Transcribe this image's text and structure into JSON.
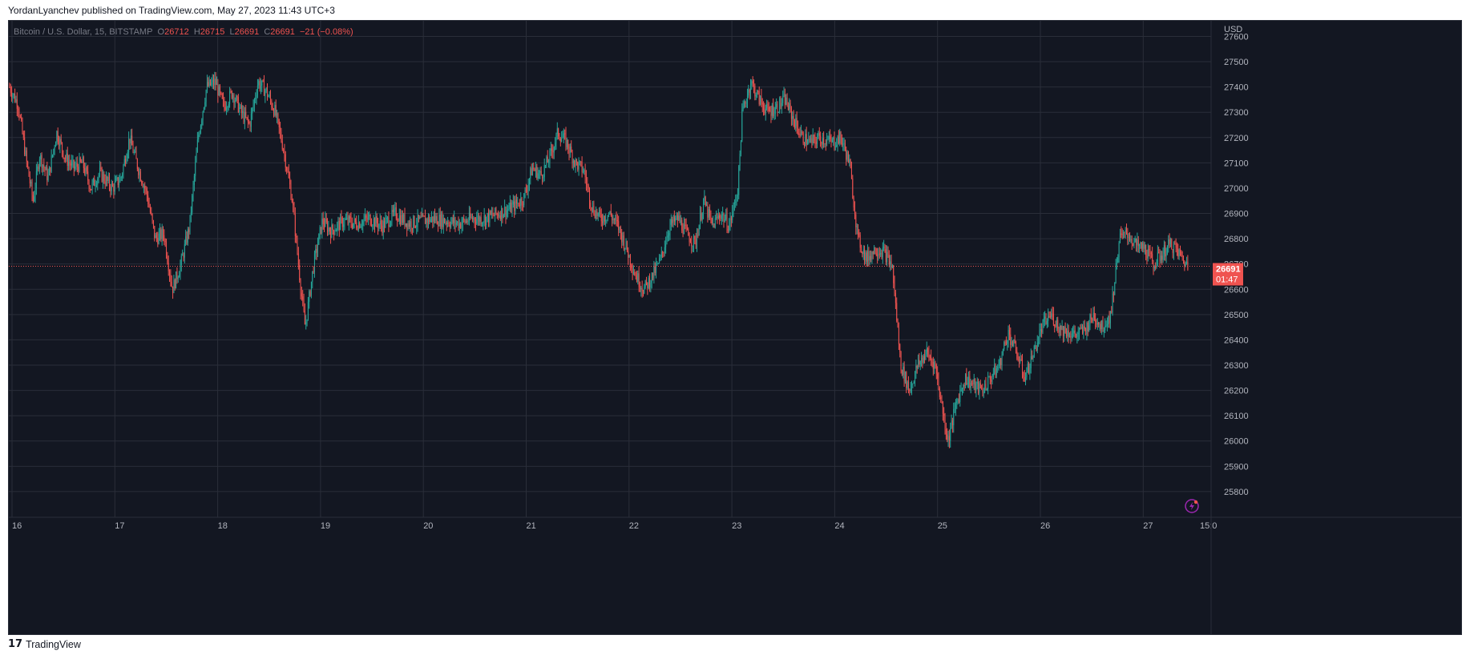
{
  "header": {
    "publisher": "YordanLyanchev",
    "published_text": "published on TradingView.com, May 27, 2023 11:43 UTC+3"
  },
  "legend": {
    "symbol": "Bitcoin / U.S. Dollar, 15, BITSTAMP",
    "open_label": "O",
    "open": "26712",
    "high_label": "H",
    "high": "26715",
    "low_label": "L",
    "low": "26691",
    "close_label": "C",
    "close": "26691",
    "change": "−21 (−0.08%)"
  },
  "price_tag": {
    "price": "26691",
    "countdown": "01:47"
  },
  "footer": {
    "brand": "TradingView",
    "logo": "tradingview-logo-icon"
  },
  "colors": {
    "background": "#131722",
    "grid": "#2a2e39",
    "up": "#26a69a",
    "down": "#ef5350",
    "axis_text": "#b2b5be",
    "last_price": "#ef5350"
  },
  "chart_data": {
    "type": "candlestick",
    "y_axis_unit": "USD",
    "ylim": [
      25730,
      27630
    ],
    "y_ticks": [
      25800,
      25900,
      26000,
      26100,
      26200,
      26300,
      26400,
      26500,
      26600,
      26700,
      26800,
      26900,
      27000,
      27100,
      27200,
      27300,
      27400,
      27500,
      27600
    ],
    "x_ticks": [
      "16",
      "17",
      "18",
      "19",
      "20",
      "21",
      "22",
      "23",
      "24",
      "25",
      "26",
      "27",
      "15:0"
    ],
    "last_price": 26691,
    "grid": true,
    "close_path": [
      [
        "2023-05-16 00:00",
        27400
      ],
      [
        "2023-05-16 02:00",
        27330
      ],
      [
        "2023-05-16 04:00",
        27100
      ],
      [
        "2023-05-16 05:30",
        26950
      ],
      [
        "2023-05-16 07:00",
        27130
      ],
      [
        "2023-05-16 09:00",
        27040
      ],
      [
        "2023-05-16 11:00",
        27220
      ],
      [
        "2023-05-16 13:00",
        27120
      ],
      [
        "2023-05-16 15:00",
        27080
      ],
      [
        "2023-05-16 17:00",
        27100
      ],
      [
        "2023-05-16 19:00",
        27000
      ],
      [
        "2023-05-16 21:00",
        27060
      ],
      [
        "2023-05-17 00:00",
        27000
      ],
      [
        "2023-05-17 02:00",
        27040
      ],
      [
        "2023-05-17 04:00",
        27200
      ],
      [
        "2023-05-17 06:00",
        27080
      ],
      [
        "2023-05-17 08:00",
        26980
      ],
      [
        "2023-05-17 10:00",
        26800
      ],
      [
        "2023-05-17 12:00",
        26820
      ],
      [
        "2023-05-17 14:00",
        26600
      ],
      [
        "2023-05-17 16:00",
        26700
      ],
      [
        "2023-05-17 18:00",
        26850
      ],
      [
        "2023-05-17 20:00",
        27200
      ],
      [
        "2023-05-17 22:00",
        27400
      ],
      [
        "2023-05-18 00:00",
        27420
      ],
      [
        "2023-05-18 02:00",
        27320
      ],
      [
        "2023-05-18 04:00",
        27380
      ],
      [
        "2023-05-18 06:00",
        27300
      ],
      [
        "2023-05-18 08:00",
        27250
      ],
      [
        "2023-05-18 10:00",
        27420
      ],
      [
        "2023-05-18 12:00",
        27380
      ],
      [
        "2023-05-18 14:00",
        27300
      ],
      [
        "2023-05-18 16:00",
        27150
      ],
      [
        "2023-05-18 18:00",
        26950
      ],
      [
        "2023-05-18 20:00",
        26600
      ],
      [
        "2023-05-18 21:00",
        26450
      ],
      [
        "2023-05-18 23:00",
        26700
      ],
      [
        "2023-05-19 01:00",
        26870
      ],
      [
        "2023-05-19 03:00",
        26830
      ],
      [
        "2023-05-19 06:00",
        26870
      ],
      [
        "2023-05-19 09:00",
        26860
      ],
      [
        "2023-05-19 12:00",
        26880
      ],
      [
        "2023-05-19 15:00",
        26850
      ],
      [
        "2023-05-19 18:00",
        26900
      ],
      [
        "2023-05-19 21:00",
        26860
      ],
      [
        "2023-05-20 00:00",
        26870
      ],
      [
        "2023-05-20 03:00",
        26880
      ],
      [
        "2023-05-20 06:00",
        26870
      ],
      [
        "2023-05-20 09:00",
        26860
      ],
      [
        "2023-05-20 12:00",
        26880
      ],
      [
        "2023-05-20 15:00",
        26880
      ],
      [
        "2023-05-20 18:00",
        26900
      ],
      [
        "2023-05-20 21:00",
        26920
      ],
      [
        "2023-05-21 00:00",
        26960
      ],
      [
        "2023-05-21 02:00",
        27080
      ],
      [
        "2023-05-21 04:00",
        27050
      ],
      [
        "2023-05-21 06:00",
        27120
      ],
      [
        "2023-05-21 08:00",
        27220
      ],
      [
        "2023-05-21 10:00",
        27180
      ],
      [
        "2023-05-21 12:00",
        27100
      ],
      [
        "2023-05-21 14:00",
        27070
      ],
      [
        "2023-05-21 16:00",
        26920
      ],
      [
        "2023-05-21 18:00",
        26880
      ],
      [
        "2023-05-21 20:00",
        26900
      ],
      [
        "2023-05-21 22:00",
        26850
      ],
      [
        "2023-05-22 00:00",
        26760
      ],
      [
        "2023-05-22 02:00",
        26660
      ],
      [
        "2023-05-22 04:00",
        26600
      ],
      [
        "2023-05-22 06:00",
        26650
      ],
      [
        "2023-05-22 08:00",
        26720
      ],
      [
        "2023-05-22 10:00",
        26850
      ],
      [
        "2023-05-22 12:00",
        26880
      ],
      [
        "2023-05-22 14:00",
        26820
      ],
      [
        "2023-05-22 16:00",
        26780
      ],
      [
        "2023-05-22 18:00",
        26950
      ],
      [
        "2023-05-22 20:00",
        26850
      ],
      [
        "2023-05-22 22:00",
        26900
      ],
      [
        "2023-05-23 00:00",
        26850
      ],
      [
        "2023-05-23 02:00",
        27000
      ],
      [
        "2023-05-23 03:00",
        27300
      ],
      [
        "2023-05-23 05:00",
        27420
      ],
      [
        "2023-05-23 07:00",
        27350
      ],
      [
        "2023-05-23 09:00",
        27300
      ],
      [
        "2023-05-23 11:00",
        27320
      ],
      [
        "2023-05-23 13:00",
        27350
      ],
      [
        "2023-05-23 15:00",
        27270
      ],
      [
        "2023-05-23 17:00",
        27200
      ],
      [
        "2023-05-23 19:00",
        27180
      ],
      [
        "2023-05-23 21:00",
        27200
      ],
      [
        "2023-05-24 00:00",
        27180
      ],
      [
        "2023-05-24 02:00",
        27200
      ],
      [
        "2023-05-24 04:00",
        27100
      ],
      [
        "2023-05-24 06:00",
        26800
      ],
      [
        "2023-05-24 08:00",
        26720
      ],
      [
        "2023-05-24 10:00",
        26760
      ],
      [
        "2023-05-24 12:00",
        26750
      ],
      [
        "2023-05-24 14:00",
        26690
      ],
      [
        "2023-05-24 16:00",
        26300
      ],
      [
        "2023-05-24 18:00",
        26200
      ],
      [
        "2023-05-24 20:00",
        26300
      ],
      [
        "2023-05-24 22:00",
        26350
      ],
      [
        "2023-05-25 00:00",
        26300
      ],
      [
        "2023-05-25 02:00",
        26100
      ],
      [
        "2023-05-25 03:00",
        26000
      ],
      [
        "2023-05-25 05:00",
        26150
      ],
      [
        "2023-05-25 07:00",
        26250
      ],
      [
        "2023-05-25 09:00",
        26220
      ],
      [
        "2023-05-25 11:00",
        26200
      ],
      [
        "2023-05-25 13:00",
        26250
      ],
      [
        "2023-05-25 15:00",
        26300
      ],
      [
        "2023-05-25 17:00",
        26430
      ],
      [
        "2023-05-25 19:00",
        26350
      ],
      [
        "2023-05-25 21:00",
        26250
      ],
      [
        "2023-05-25 23:00",
        26350
      ],
      [
        "2023-05-26 01:00",
        26450
      ],
      [
        "2023-05-26 03:00",
        26500
      ],
      [
        "2023-05-26 05:00",
        26450
      ],
      [
        "2023-05-26 07:00",
        26430
      ],
      [
        "2023-05-26 09:00",
        26420
      ],
      [
        "2023-05-26 11:00",
        26440
      ],
      [
        "2023-05-26 13:00",
        26500
      ],
      [
        "2023-05-26 15:00",
        26450
      ],
      [
        "2023-05-26 17:00",
        26500
      ],
      [
        "2023-05-26 19:00",
        26800
      ],
      [
        "2023-05-26 21:00",
        26820
      ],
      [
        "2023-05-26 23:00",
        26770
      ],
      [
        "2023-05-27 01:00",
        26760
      ],
      [
        "2023-05-27 03:00",
        26700
      ],
      [
        "2023-05-27 05:00",
        26740
      ],
      [
        "2023-05-27 07:00",
        26780
      ],
      [
        "2023-05-27 09:00",
        26740
      ],
      [
        "2023-05-27 11:00",
        26691
      ]
    ]
  }
}
